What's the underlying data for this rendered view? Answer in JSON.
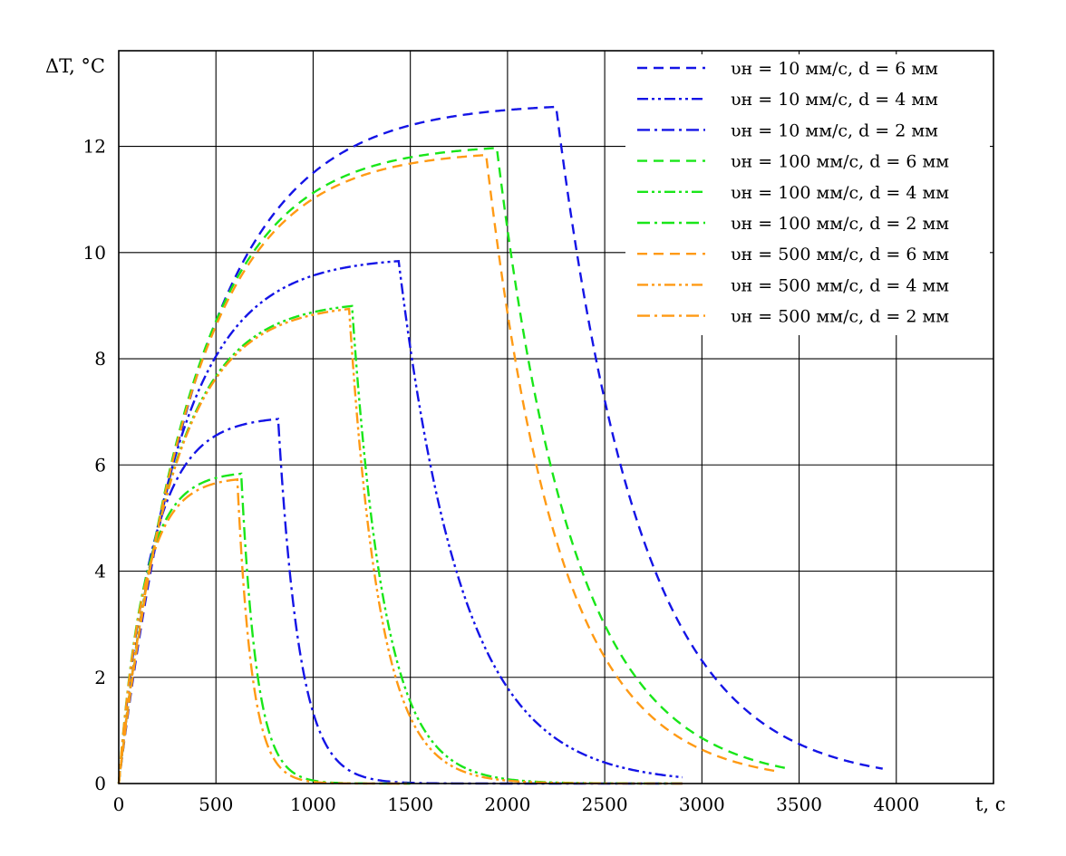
{
  "chart_data": {
    "type": "line",
    "xlabel": "t, с",
    "ylabel": "ΔT, °C",
    "xlim": [
      0,
      4500
    ],
    "ylim": [
      0,
      13.8
    ],
    "x_ticks": [
      0,
      500,
      1000,
      1500,
      2000,
      2500,
      3000,
      3500,
      4000
    ],
    "x_tick_labels": [
      "0",
      "500",
      "1000",
      "1500",
      "2000",
      "2500",
      "3000",
      "3500",
      "4000"
    ],
    "y_ticks": [
      0,
      2,
      4,
      6,
      8,
      10,
      12
    ],
    "y_tick_labels": [
      "0",
      "2",
      "4",
      "6",
      "8",
      "10",
      "12"
    ],
    "grid": true,
    "legend_position": "top-right",
    "colors": {
      "blue": "#1414e6",
      "green": "#19e619",
      "orange": "#ff9a14"
    },
    "series": [
      {
        "name": "υн = 10 мм/с,  d = 6 мм",
        "color": "#1414e6",
        "dash": "dash",
        "peak": 12.82,
        "tau_rise": 440,
        "t_off": 2250,
        "tau_decay": 440,
        "t_end": 3930
      },
      {
        "name": "υн = 10 мм/с,  d = 4 мм",
        "color": "#1414e6",
        "dash": "dashdotdot",
        "peak": 9.92,
        "tau_rise": 300,
        "t_off": 1440,
        "tau_decay": 330,
        "t_end": 2900
      },
      {
        "name": "υн = 10 мм/с,  d = 2 мм",
        "color": "#1414e6",
        "dash": "dashdot",
        "peak": 6.92,
        "tau_rise": 170,
        "t_off": 820,
        "tau_decay": 110,
        "t_end": 2900
      },
      {
        "name": "υн = 100 мм/с,  d = 6 мм",
        "color": "#19e619",
        "dash": "dash",
        "peak": 12.05,
        "tau_rise": 390,
        "t_off": 1945,
        "tau_decay": 400,
        "t_end": 3430
      },
      {
        "name": "υн = 100 мм/с,  d = 4 мм",
        "color": "#19e619",
        "dash": "dashdotdot",
        "peak": 9.1,
        "tau_rise": 270,
        "t_off": 1200,
        "tau_decay": 170,
        "t_end": 2900
      },
      {
        "name": "υн = 100 мм/с,  d = 2 мм",
        "color": "#19e619",
        "dash": "dashdot",
        "peak": 5.88,
        "tau_rise": 130,
        "t_off": 630,
        "tau_decay": 80,
        "t_end": 1500
      },
      {
        "name": "υн = 500 мм/с,  d = 6 мм",
        "color": "#ff9a14",
        "dash": "dash",
        "peak": 11.93,
        "tau_rise": 390,
        "t_off": 1890,
        "tau_decay": 380,
        "t_end": 3400
      },
      {
        "name": "υн = 500 мм/с,  d = 4 мм",
        "color": "#ff9a14",
        "dash": "dashdotdot",
        "peak": 9.05,
        "tau_rise": 270,
        "t_off": 1185,
        "tau_decay": 160,
        "t_end": 2900
      },
      {
        "name": "υн = 500 мм/с,  d = 2 мм",
        "color": "#ff9a14",
        "dash": "dashdot",
        "peak": 5.78,
        "tau_rise": 130,
        "t_off": 610,
        "tau_decay": 75,
        "t_end": 1500
      }
    ]
  }
}
